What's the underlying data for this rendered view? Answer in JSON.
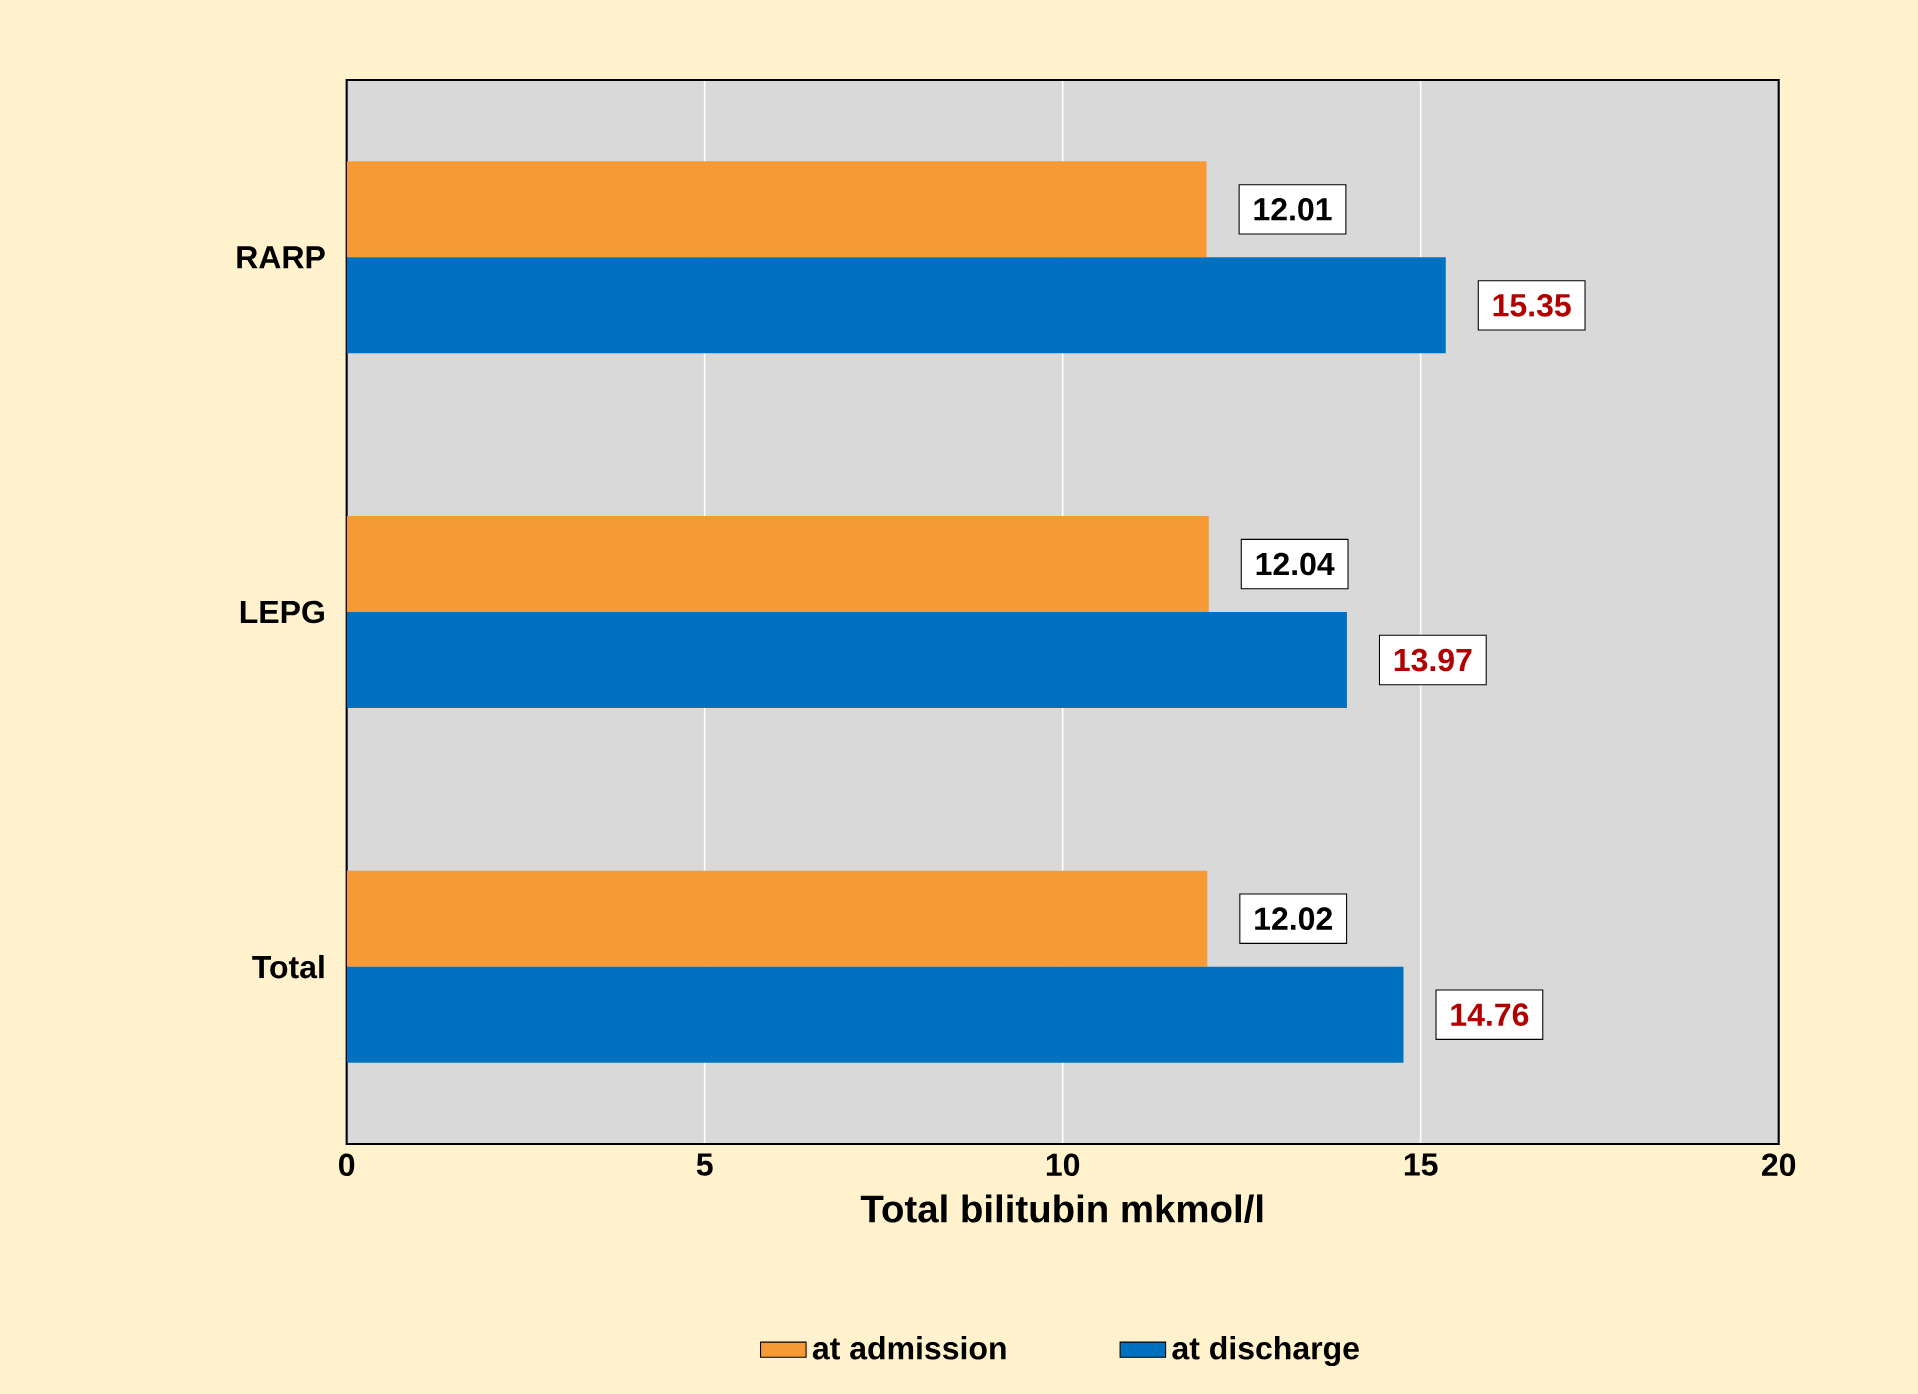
{
  "chart_data": {
    "type": "bar",
    "orientation": "horizontal",
    "xlabel": "Total bilitubin mkmol/l",
    "categories": [
      "RARP",
      "LEPG",
      "Total"
    ],
    "series": [
      {
        "name": "at admission",
        "color": "#f79a35",
        "values": [
          12.01,
          12.04,
          12.02
        ]
      },
      {
        "name": "at discharge",
        "color": "#0070c0",
        "values": [
          15.35,
          13.97,
          14.76
        ]
      }
    ],
    "xlim": [
      0,
      20
    ],
    "xticks": [
      0,
      5,
      10,
      15,
      20
    ],
    "grid": "x",
    "legend": "bottom",
    "data_labels": true
  }
}
